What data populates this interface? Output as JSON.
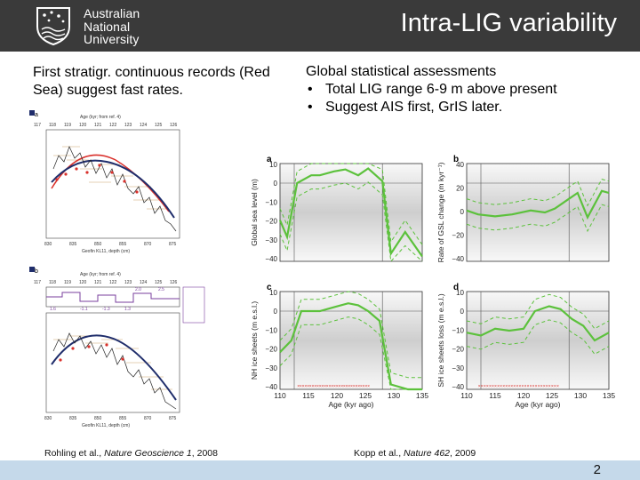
{
  "header": {
    "university_name": [
      "Australian",
      "National",
      "University"
    ],
    "title": "Intra-LIG variability"
  },
  "left": {
    "text": "First stratigr. continuous records (Red Sea) suggest fast rates.",
    "citation": {
      "prefix": "Rohling et al., ",
      "journal": "Nature Geoscience 1",
      "suffix": ", 2008"
    }
  },
  "right": {
    "heading": "Global statistical assessments",
    "bullets": [
      "Total LIG range 6-9 m above present",
      "Suggest AIS first, GrIS later."
    ],
    "citation": {
      "prefix": "Kopp et al., ",
      "journal": "Nature 462",
      "suffix": ", 2009"
    }
  },
  "rohling_figure": {
    "panel_a": {
      "label": "a",
      "top_axis_title": "Age (kyr; from ref. 4)",
      "top_ticks": [
        "117",
        "118",
        "119",
        "120",
        "121",
        "122",
        "123",
        "124",
        "125",
        "126"
      ],
      "bottom_axis_title": "Geofin KL11, depth (cm)",
      "bottom_ticks": [
        "830",
        "835",
        "850",
        "855",
        "870",
        "875"
      ]
    },
    "panel_b": {
      "label": "b",
      "top_axis_title": "Age (kyr; from ref. 4)",
      "top_ticks": [
        "117",
        "118",
        "119",
        "120",
        "121",
        "122",
        "123",
        "124",
        "125",
        "126"
      ],
      "bottom_axis_title": "Geofin KL11, depth (cm)",
      "bottom_ticks": [
        "830",
        "835",
        "850",
        "855",
        "870",
        "875"
      ],
      "annotations": [
        "1.6",
        "-1.1",
        "-1.3",
        "1.3",
        "2.0",
        "2.5"
      ]
    }
  },
  "kopp_figure": {
    "x_label": "Age (kyr ago)",
    "x_ticks": [
      "110",
      "115",
      "120",
      "125",
      "130",
      "135"
    ],
    "panels": [
      {
        "label": "a",
        "ylabel": "Global sea level (m)",
        "y_ticks": [
          "10",
          "0",
          "−10",
          "−20",
          "−30",
          "−40"
        ]
      },
      {
        "label": "b",
        "ylabel": "Rate of GSL change (m kyr⁻¹)",
        "y_ticks": [
          "40",
          "20",
          "0",
          "−20",
          "−40"
        ]
      },
      {
        "label": "c",
        "ylabel": "NH ice sheets (m e.s.l.)",
        "y_ticks": [
          "10",
          "0",
          "−10",
          "−20",
          "−30",
          "−40"
        ]
      },
      {
        "label": "d",
        "ylabel": "SH ice sheets loss (m e.s.l.)",
        "y_ticks": [
          "10",
          "0",
          "−10",
          "−20",
          "−30",
          "−40"
        ]
      }
    ]
  },
  "footer": {
    "page_number": "2"
  },
  "colors": {
    "header_bg": "#3a3a3a",
    "footer_bg": "#c5d9ea",
    "green": "#5cc13c",
    "red_series": "#d9302b",
    "navy_series": "#1f2d6b"
  }
}
